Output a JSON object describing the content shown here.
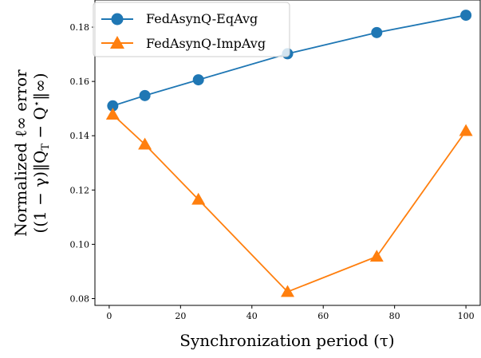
{
  "chart_data": {
    "type": "line",
    "x": [
      1,
      10,
      25,
      50,
      75,
      100
    ],
    "series": [
      {
        "name": "FedAsynQ-EqAvg",
        "values": [
          0.151,
          0.1548,
          0.1606,
          0.1702,
          0.178,
          0.1844
        ],
        "color": "#1f77b4",
        "marker": "circle"
      },
      {
        "name": "FedAsynQ-ImpAvg",
        "values": [
          0.1478,
          0.1368,
          0.1165,
          0.0825,
          0.0955,
          0.1418
        ],
        "color": "#ff7f0e",
        "marker": "triangle"
      }
    ],
    "xlabel": "Synchronization period (τ)",
    "ylabel_line1": "Normalized ℓ∞ error",
    "ylabel_line2": "((1 − γ)‖Q",
    "ylabel_line2_sub": "T",
    "ylabel_line2_mid": " − Q",
    "ylabel_line2_sup": "⋆",
    "ylabel_line2_end": "‖∞)",
    "xlim": [
      -4,
      104
    ],
    "ylim": [
      0.0775,
      0.19
    ],
    "xticks": [
      0,
      20,
      40,
      60,
      80,
      100
    ],
    "xtick_labels": [
      "0",
      "20",
      "40",
      "60",
      "80",
      "100"
    ],
    "yticks": [
      0.08,
      0.1,
      0.12,
      0.14,
      0.16,
      0.18
    ],
    "ytick_labels": [
      "0.08",
      "0.10",
      "0.12",
      "0.14",
      "0.16",
      "0.18"
    ],
    "grid": false,
    "legend_position": "top-left"
  }
}
